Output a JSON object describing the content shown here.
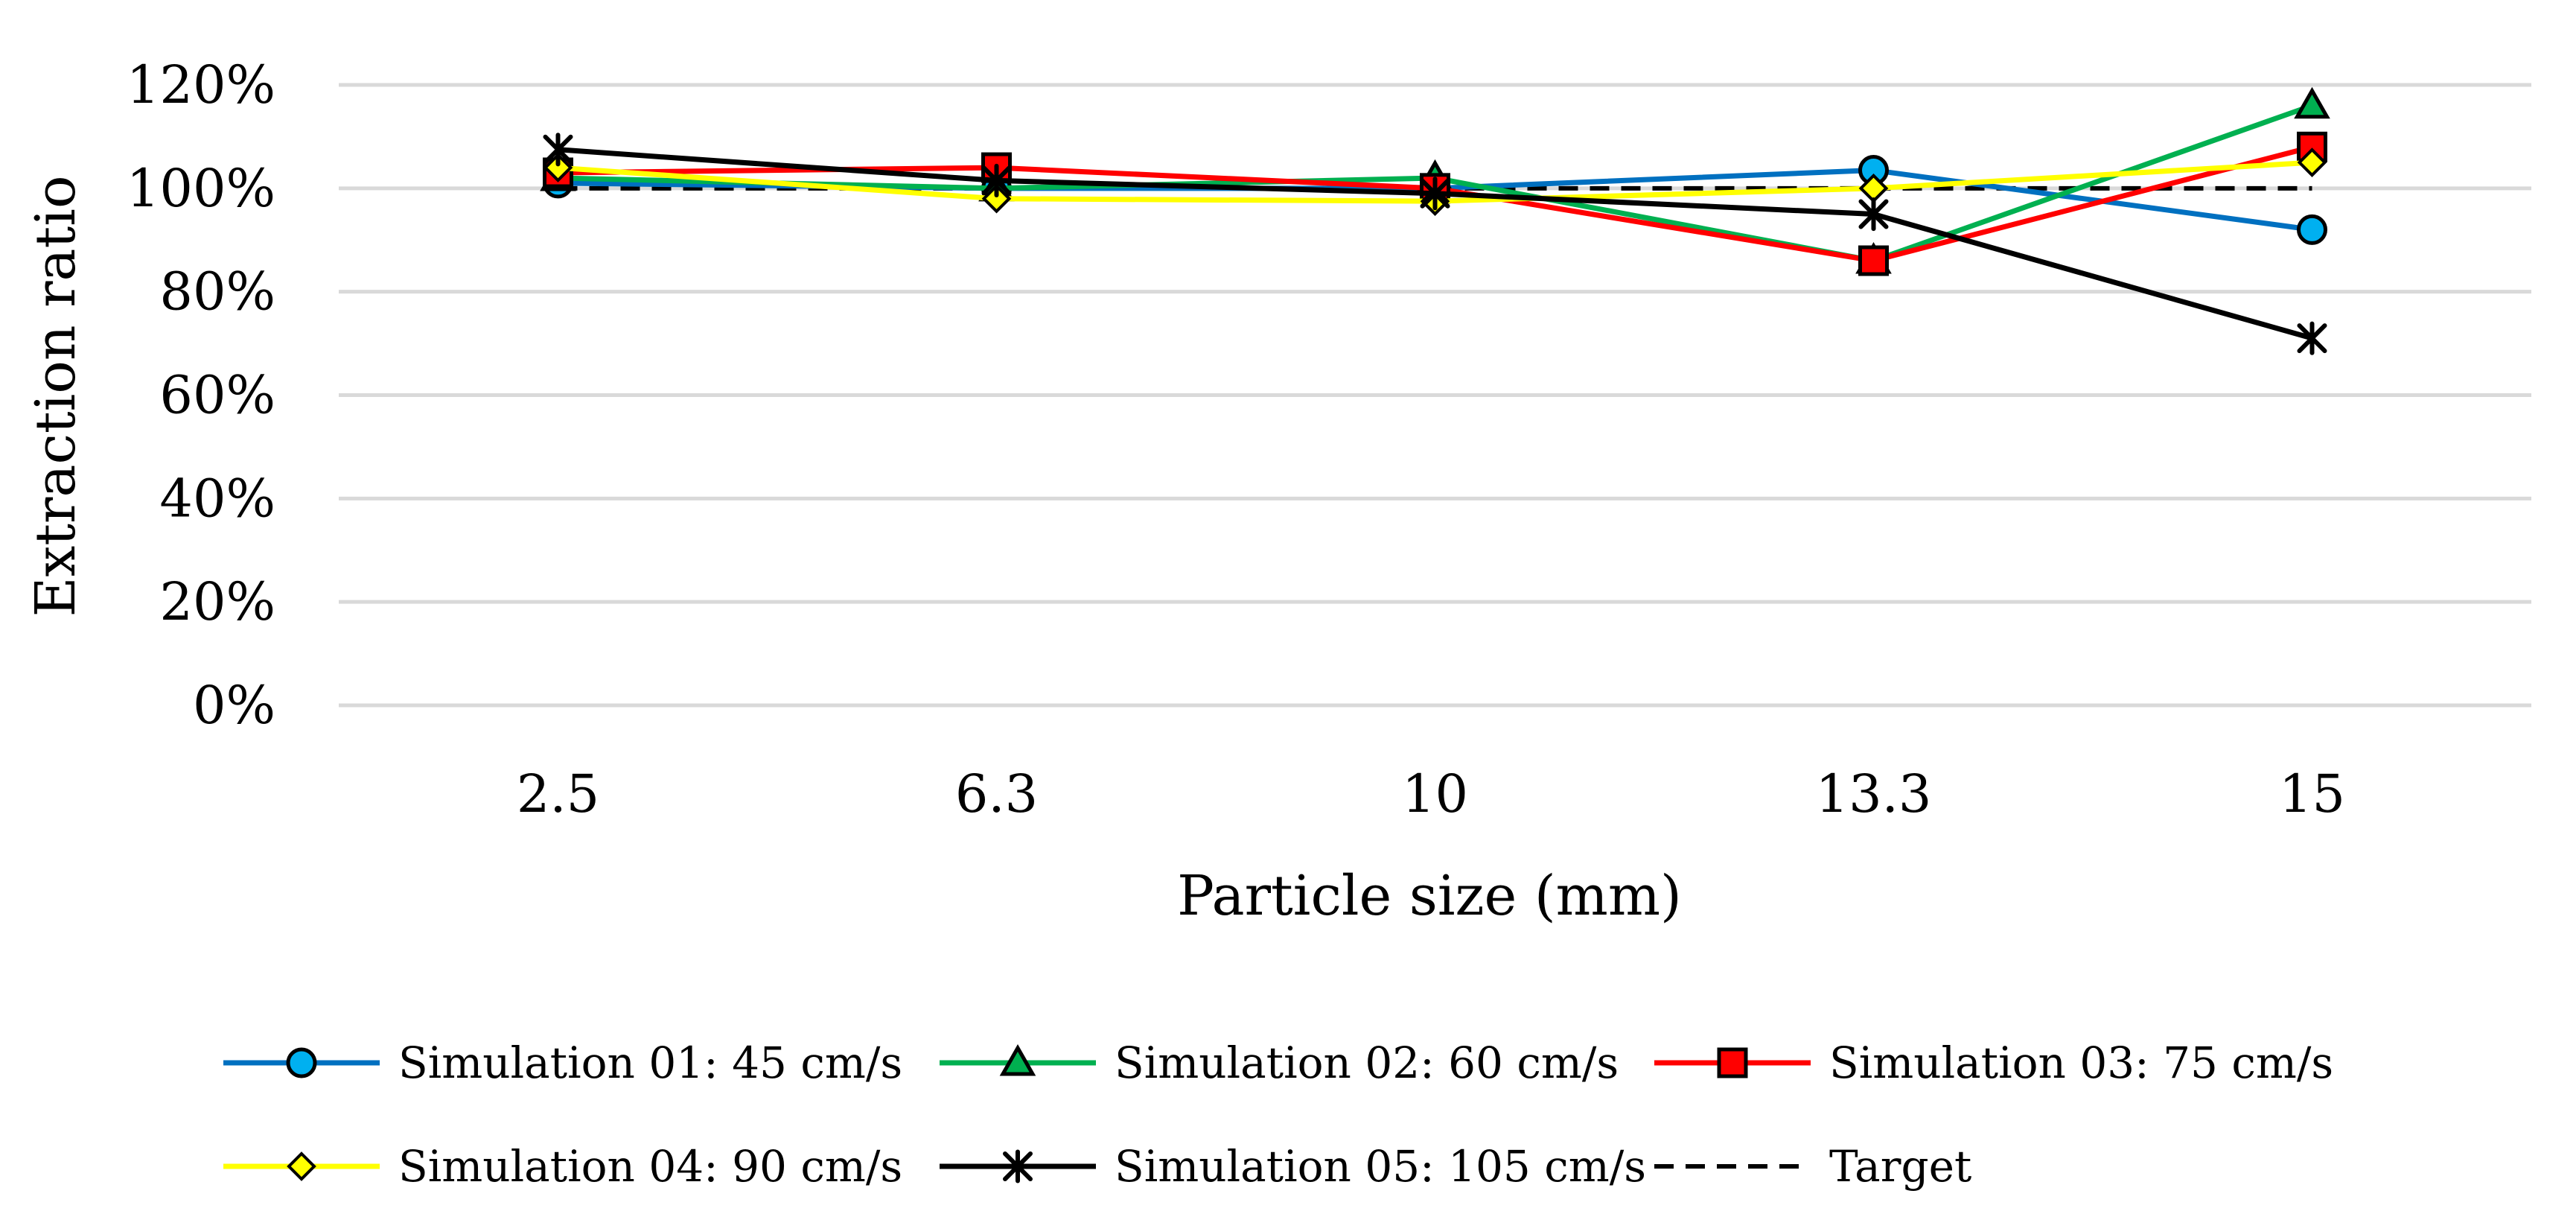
{
  "chart_data": {
    "type": "line",
    "title": "",
    "xlabel": "Particle size (mm)",
    "ylabel": "Extraction ratio",
    "categories": [
      "2.5",
      "6.3",
      "10",
      "13.3",
      "15"
    ],
    "ylim": [
      0,
      120
    ],
    "yticks": [
      0,
      20,
      40,
      60,
      80,
      100,
      120
    ],
    "ytick_labels": [
      "0%",
      "20%",
      "40%",
      "60%",
      "80%",
      "100%",
      "120%"
    ],
    "grid": true,
    "legend_position": "bottom",
    "series": [
      {
        "name": "Simulation 01: 45 cm/s",
        "color": "#0070C0",
        "marker": "circle",
        "marker_fill": "#00B0F0",
        "dashed": false,
        "values": [
          101,
          100,
          100,
          103.5,
          92
        ]
      },
      {
        "name": "Simulation 02: 60 cm/s",
        "color": "#00B050",
        "marker": "triangle",
        "marker_fill": "#00B050",
        "dashed": false,
        "values": [
          102,
          100,
          102,
          86,
          116
        ]
      },
      {
        "name": "Simulation 03: 75 cm/s",
        "color": "#FF0000",
        "marker": "square",
        "marker_fill": "#FF0000",
        "dashed": false,
        "values": [
          103,
          104,
          100,
          86,
          108
        ]
      },
      {
        "name": "Simulation 04: 90 cm/s",
        "color": "#FFFF00",
        "marker": "diamond",
        "marker_fill": "#FFFF00",
        "dashed": false,
        "values": [
          104,
          98,
          97.5,
          100,
          105
        ]
      },
      {
        "name": "Simulation 05: 105 cm/s",
        "color": "#000000",
        "marker": "asterisk",
        "marker_fill": "#000000",
        "dashed": false,
        "values": [
          107.5,
          101.5,
          99,
          95,
          71
        ]
      },
      {
        "name": "Target",
        "color": "#000000",
        "marker": "none",
        "marker_fill": "",
        "dashed": true,
        "values": [
          100,
          100,
          100,
          100,
          100
        ]
      }
    ]
  }
}
